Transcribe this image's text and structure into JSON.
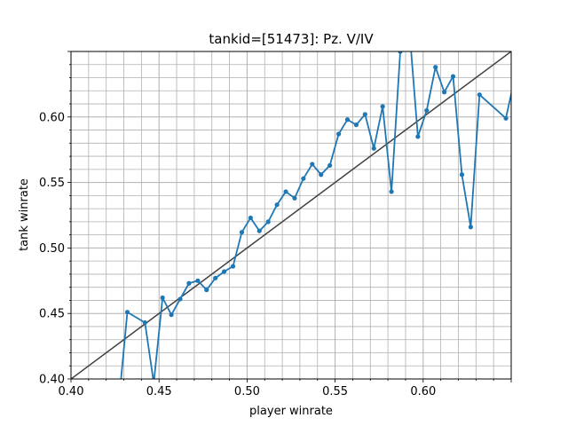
{
  "chart_data": {
    "type": "line",
    "title": "tankid=[51473]: Pz. V/IV",
    "xlabel": "player winrate",
    "ylabel": "tank winrate",
    "xlim": [
      0.4,
      0.65
    ],
    "ylim": [
      0.4,
      0.65
    ],
    "x_ticks": [
      "0.40",
      "0.45",
      "0.50",
      "0.55",
      "0.60"
    ],
    "y_ticks": [
      "0.40",
      "0.45",
      "0.50",
      "0.55",
      "0.60"
    ],
    "grid": "on",
    "series": [
      {
        "color": "#1f77b4",
        "x": [
          0.427,
          0.432,
          0.442,
          0.447,
          0.452,
          0.457,
          0.462,
          0.467,
          0.472,
          0.477,
          0.482,
          0.487,
          0.492,
          0.497,
          0.502,
          0.507,
          0.512,
          0.517,
          0.522,
          0.527,
          0.532,
          0.537,
          0.542,
          0.547,
          0.552,
          0.557,
          0.562,
          0.567,
          0.572,
          0.577,
          0.582,
          0.587,
          0.592,
          0.597,
          0.602,
          0.607,
          0.612,
          0.617,
          0.622,
          0.627,
          0.632,
          0.647,
          0.652
        ],
        "y": [
          0.38,
          0.451,
          0.443,
          0.397,
          0.462,
          0.449,
          0.461,
          0.473,
          0.475,
          0.468,
          0.477,
          0.482,
          0.486,
          0.512,
          0.523,
          0.513,
          0.52,
          0.533,
          0.543,
          0.538,
          0.553,
          0.564,
          0.556,
          0.563,
          0.587,
          0.598,
          0.594,
          0.602,
          0.576,
          0.608,
          0.543,
          0.65,
          0.67,
          0.585,
          0.605,
          0.638,
          0.619,
          0.631,
          0.556,
          0.516,
          0.617,
          0.599,
          0.63
        ]
      },
      {
        "color": "#404040",
        "x": [
          0.4,
          0.65
        ],
        "y": [
          0.4,
          0.65
        ]
      }
    ]
  }
}
